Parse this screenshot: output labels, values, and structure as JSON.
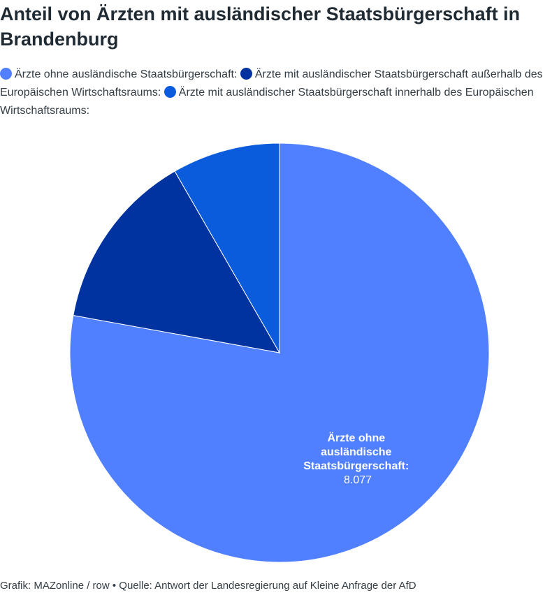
{
  "title": "Anteil von Ärzten mit ausländischer Staatsbürgerschaft in Brandenburg",
  "footer": "Grafik: MAZonline / row • Quelle: Antwort der Landesregierung auf Kleine Anfrage der AfD",
  "chart_data": {
    "type": "pie",
    "legend_position": "top",
    "series": [
      {
        "name": "Ärzte ohne ausländische Staatsbürgerschaft:",
        "value": 8077,
        "color": "#5080ff"
      },
      {
        "name": "Ärzte mit ausländischer Staatsbürgerschaft außerhalb des Europäischen Wirtschaftsraums:",
        "value": 1434,
        "color": "#0032a0"
      },
      {
        "name": "Ärzte mit ausländischer Staatsbürgerschaft innerhalb des Europäischen Wirtschaftsraums:",
        "value": 864,
        "color": "#0a5cdc"
      }
    ],
    "data_labels": [
      {
        "series_index": 0,
        "label": "Ärzte ohne ausländische Staatsbürgerschaft:",
        "value_text": "8.077"
      }
    ]
  }
}
